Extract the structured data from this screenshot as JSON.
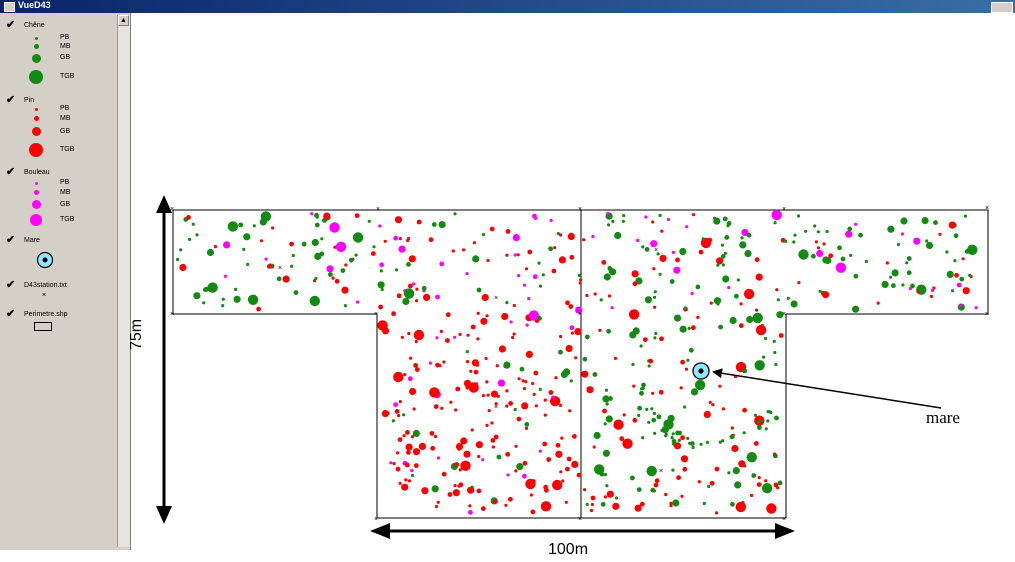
{
  "window": {
    "title": "VueD43"
  },
  "legend": {
    "layers": [
      {
        "name": "Chêne",
        "color": "#138a13",
        "classes": [
          "PB",
          "MB",
          "GB",
          "TGB"
        ]
      },
      {
        "name": "Pin",
        "color": "#ff0000",
        "classes": [
          "PB",
          "MB",
          "GB",
          "TGB"
        ]
      },
      {
        "name": "Bouleau",
        "color": "#ff00ff",
        "classes": [
          "PB",
          "MB",
          "GB",
          "TGB"
        ]
      },
      {
        "name": "Mare"
      },
      {
        "name": "D43station.txt"
      },
      {
        "name": "Perimetre.shp"
      }
    ]
  },
  "annotations": {
    "height_label": "75m",
    "width_label": "100m",
    "pond_label": "mare"
  },
  "colors": {
    "chene": "#138a13",
    "pin": "#ff0000",
    "bouleau": "#ff00ff",
    "mare": "#8ee8ff"
  }
}
